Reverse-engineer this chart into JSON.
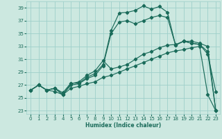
{
  "xlabel": "Humidex (Indice chaleur)",
  "xlim": [
    -0.5,
    23.5
  ],
  "ylim": [
    22.5,
    40.0
  ],
  "xticks": [
    0,
    1,
    2,
    3,
    4,
    5,
    6,
    7,
    8,
    9,
    10,
    11,
    12,
    13,
    14,
    15,
    16,
    17,
    18,
    19,
    20,
    21,
    22,
    23
  ],
  "yticks": [
    23,
    25,
    27,
    29,
    31,
    33,
    35,
    37,
    39
  ],
  "bg_color": "#cce8e0",
  "grid_color": "#9ecfca",
  "line_color": "#1a6b5a",
  "line1_x": [
    0,
    1,
    2,
    3,
    4,
    5,
    6,
    7,
    8,
    9,
    10,
    11,
    12,
    13,
    14,
    15,
    16,
    17,
    18,
    19,
    20,
    21,
    22,
    23
  ],
  "line1_y": [
    26.2,
    27.0,
    26.2,
    26.5,
    25.8,
    27.3,
    27.3,
    28.2,
    28.8,
    30.2,
    35.5,
    38.2,
    38.3,
    38.6,
    39.3,
    38.8,
    39.2,
    38.3,
    33.2,
    33.8,
    33.5,
    33.3,
    31.8,
    26.0
  ],
  "line2_x": [
    0,
    1,
    2,
    3,
    4,
    5,
    6,
    7,
    8,
    9,
    10,
    11,
    12,
    13,
    14,
    15,
    16,
    17,
    18,
    19,
    20,
    21,
    22,
    23
  ],
  "line2_y": [
    26.2,
    27.0,
    26.2,
    26.5,
    25.5,
    27.0,
    27.2,
    28.0,
    28.5,
    30.0,
    35.0,
    36.8,
    37.0,
    36.5,
    37.0,
    37.5,
    37.8,
    37.5,
    33.2,
    33.8,
    33.5,
    33.3,
    32.2,
    23.0
  ],
  "line3_x": [
    0,
    1,
    2,
    3,
    4,
    5,
    6,
    7,
    8,
    9,
    10,
    11,
    12,
    13,
    14,
    15,
    16,
    17,
    18,
    19,
    20,
    21,
    22,
    23
  ],
  "line3_y": [
    26.2,
    27.0,
    26.2,
    26.5,
    25.5,
    27.2,
    27.5,
    28.5,
    29.2,
    30.8,
    29.5,
    29.8,
    30.2,
    31.0,
    31.8,
    32.2,
    32.8,
    33.2,
    33.3,
    33.8,
    33.8,
    33.5,
    33.0,
    23.0
  ],
  "line4_x": [
    0,
    1,
    2,
    3,
    4,
    5,
    6,
    7,
    8,
    9,
    10,
    11,
    12,
    13,
    14,
    15,
    16,
    17,
    18,
    19,
    20,
    21,
    22,
    23
  ],
  "line4_y": [
    26.2,
    27.0,
    26.2,
    26.0,
    25.5,
    26.5,
    26.8,
    27.2,
    27.5,
    28.2,
    28.5,
    29.0,
    29.5,
    30.0,
    30.5,
    31.0,
    31.5,
    32.0,
    32.3,
    32.5,
    32.8,
    33.0,
    25.5,
    23.0
  ]
}
